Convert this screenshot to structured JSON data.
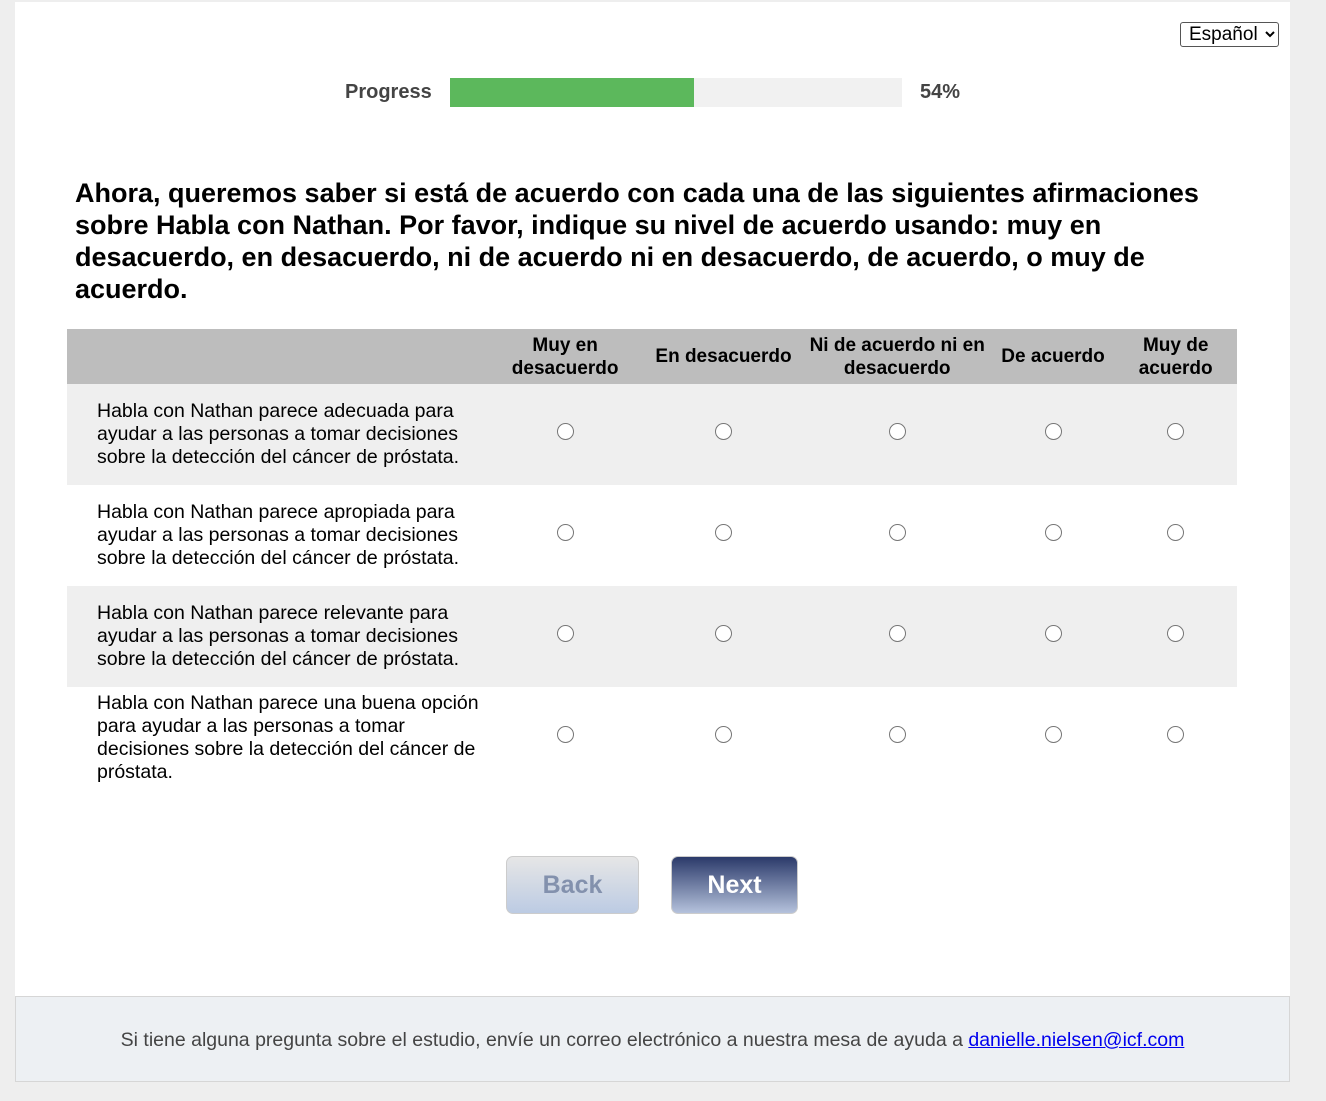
{
  "language": {
    "selected": "Español"
  },
  "progress": {
    "label": "Progress",
    "percent": 54,
    "text": "54%",
    "color": "#5cb85c"
  },
  "question": "Ahora, queremos saber si está de acuerdo con cada una de las siguientes afirmaciones sobre Habla con Nathan. Por favor, indique su nivel de acuerdo usando: muy en desacuerdo, en desacuerdo, ni de acuerdo ni en desacuerdo, de acuerdo, o muy de acuerdo.",
  "columns": [
    "Muy en desacuerdo",
    "En desacuerdo",
    "Ni de acuerdo ni en desacuerdo",
    "De acuerdo",
    "Muy de acuerdo"
  ],
  "rows": [
    "Habla con Nathan parece adecuada para ayudar a las personas a tomar decisiones sobre la detección del cáncer de próstata.",
    "Habla con Nathan parece apropiada para ayudar a las personas a tomar decisiones sobre la detección del cáncer de próstata.",
    "Habla con Nathan parece relevante para ayudar a las personas a tomar decisiones sobre la detección del cáncer de próstata.",
    "Habla con Nathan parece una buena opción para ayudar a las personas a tomar decisiones sobre la detección del cáncer de próstata."
  ],
  "buttons": {
    "back": "Back",
    "next": "Next"
  },
  "footer": {
    "text": "Si tiene alguna pregunta sobre el estudio, envíe un correo electrónico a nuestra mesa de ayuda a ",
    "email": "danielle.nielsen@icf.com"
  }
}
